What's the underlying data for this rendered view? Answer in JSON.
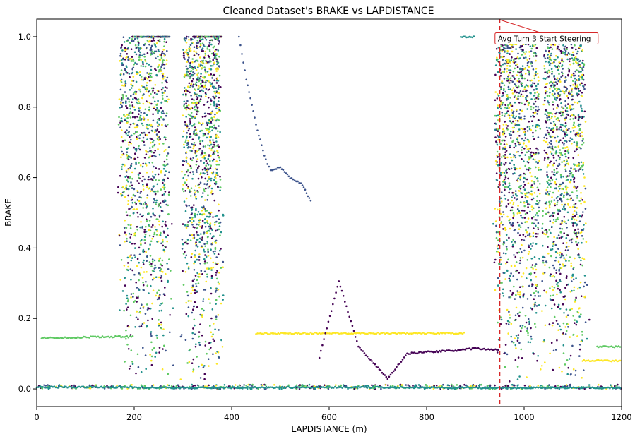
{
  "chart_data": {
    "type": "scatter",
    "title": "Cleaned Dataset's BRAKE vs LAPDISTANCE",
    "xlabel": "LAPDISTANCE (m)",
    "ylabel": "BRAKE",
    "xlim": [
      0,
      1200
    ],
    "ylim": [
      -0.05,
      1.05
    ],
    "xticks": [
      0,
      200,
      400,
      600,
      800,
      1000,
      1200
    ],
    "yticks": [
      0.0,
      0.2,
      0.4,
      0.6,
      0.8,
      1.0
    ],
    "xtick_labels": [
      "0",
      "200",
      "400",
      "600",
      "800",
      "1000",
      "1200"
    ],
    "ytick_labels": [
      "0.0",
      "0.2",
      "0.4",
      "0.6",
      "0.8",
      "1.0"
    ],
    "grid": false,
    "colormap": [
      "#440154",
      "#3b528b",
      "#21918c",
      "#5ec962",
      "#fde725"
    ],
    "reference_line": {
      "x": 950,
      "color": "#d62728",
      "style": "dashed"
    },
    "annotation": {
      "text": "Avg Turn 3 Start Steering",
      "x": 950,
      "y": 1.05,
      "text_x": 1020,
      "text_y": 0.995,
      "color": "#d62728"
    },
    "brake_zones": [
      {
        "x_start": 170,
        "x_end": 300,
        "peak": 1.0
      },
      {
        "x_start": 300,
        "x_end": 400,
        "peak": 1.0
      },
      {
        "x_start": 940,
        "x_end": 1060,
        "peak": 1.0
      },
      {
        "x_start": 1040,
        "x_end": 1150,
        "peak": 1.0
      }
    ],
    "series": [
      {
        "points": [
          [
            0,
            0.005
          ],
          [
            150,
            0.005
          ],
          [
            300,
            0.003
          ],
          [
            600,
            0.005
          ],
          [
            900,
            0.003
          ],
          [
            1200,
            0.003
          ]
        ]
      },
      {
        "points": [
          [
            10,
            0.145
          ],
          [
            70,
            0.145
          ],
          [
            120,
            0.148
          ],
          [
            200,
            0.148
          ]
        ]
      },
      {
        "points": [
          [
            450,
            0.157
          ],
          [
            550,
            0.158
          ],
          [
            700,
            0.158
          ],
          [
            880,
            0.158
          ]
        ]
      },
      {
        "points": [
          [
            580,
            0.09
          ],
          [
            620,
            0.305
          ],
          [
            660,
            0.12
          ],
          [
            700,
            0.06
          ],
          [
            720,
            0.03
          ],
          [
            760,
            0.1
          ],
          [
            800,
            0.105
          ],
          [
            850,
            0.108
          ],
          [
            900,
            0.115
          ],
          [
            950,
            0.11
          ]
        ]
      },
      {
        "points": [
          [
            415,
            1.0
          ],
          [
            430,
            0.88
          ],
          [
            450,
            0.75
          ],
          [
            470,
            0.65
          ],
          [
            480,
            0.62
          ],
          [
            500,
            0.63
          ],
          [
            520,
            0.6
          ],
          [
            545,
            0.58
          ],
          [
            565,
            0.525
          ]
        ]
      },
      {
        "points": [
          [
            870,
            1.0
          ],
          [
            900,
            1.0
          ]
        ]
      },
      {
        "points": [
          [
            1150,
            0.12
          ],
          [
            1200,
            0.12
          ]
        ]
      },
      {
        "points": [
          [
            1120,
            0.08
          ],
          [
            1200,
            0.08
          ]
        ]
      }
    ]
  }
}
